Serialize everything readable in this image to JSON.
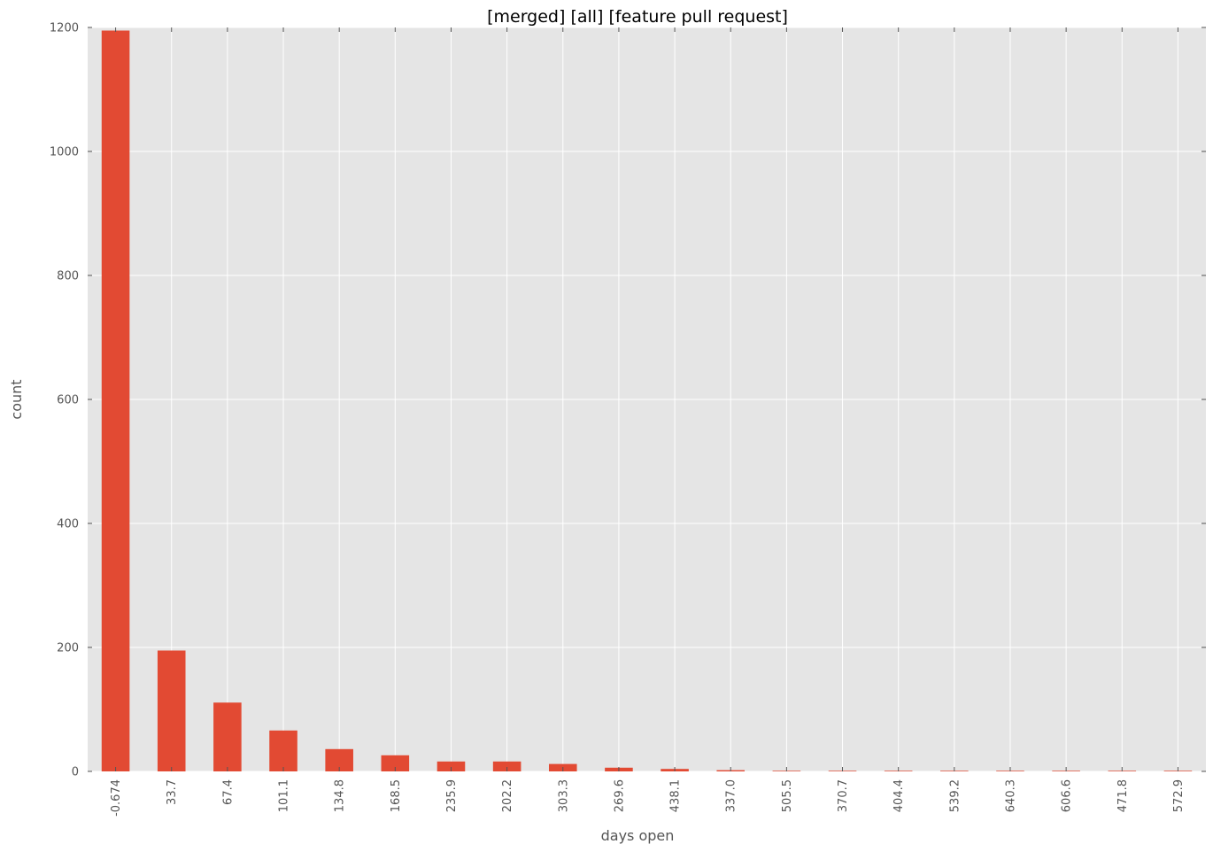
{
  "chart_data": {
    "type": "bar",
    "title": "[merged] [all] [feature pull request]",
    "xlabel": "days open",
    "ylabel": "count",
    "categories": [
      "-0.674",
      "33.7",
      "67.4",
      "101.1",
      "134.8",
      "168.5",
      "235.9",
      "202.2",
      "303.3",
      "269.6",
      "438.1",
      "337.0",
      "505.5",
      "370.7",
      "404.4",
      "539.2",
      "640.3",
      "606.6",
      "471.8",
      "572.9"
    ],
    "values": [
      1195,
      195,
      111,
      66,
      36,
      26,
      16,
      16,
      12,
      6,
      4,
      2,
      1,
      1,
      1,
      1,
      1,
      1,
      1,
      1
    ],
    "ylim": [
      0,
      1200
    ],
    "yticks": [
      0,
      200,
      400,
      600,
      800,
      1000,
      1200
    ],
    "grid": true,
    "colors": {
      "bar": "#E24A33",
      "plot_background": "#E5E5E5",
      "grid": "#ffffff"
    }
  }
}
